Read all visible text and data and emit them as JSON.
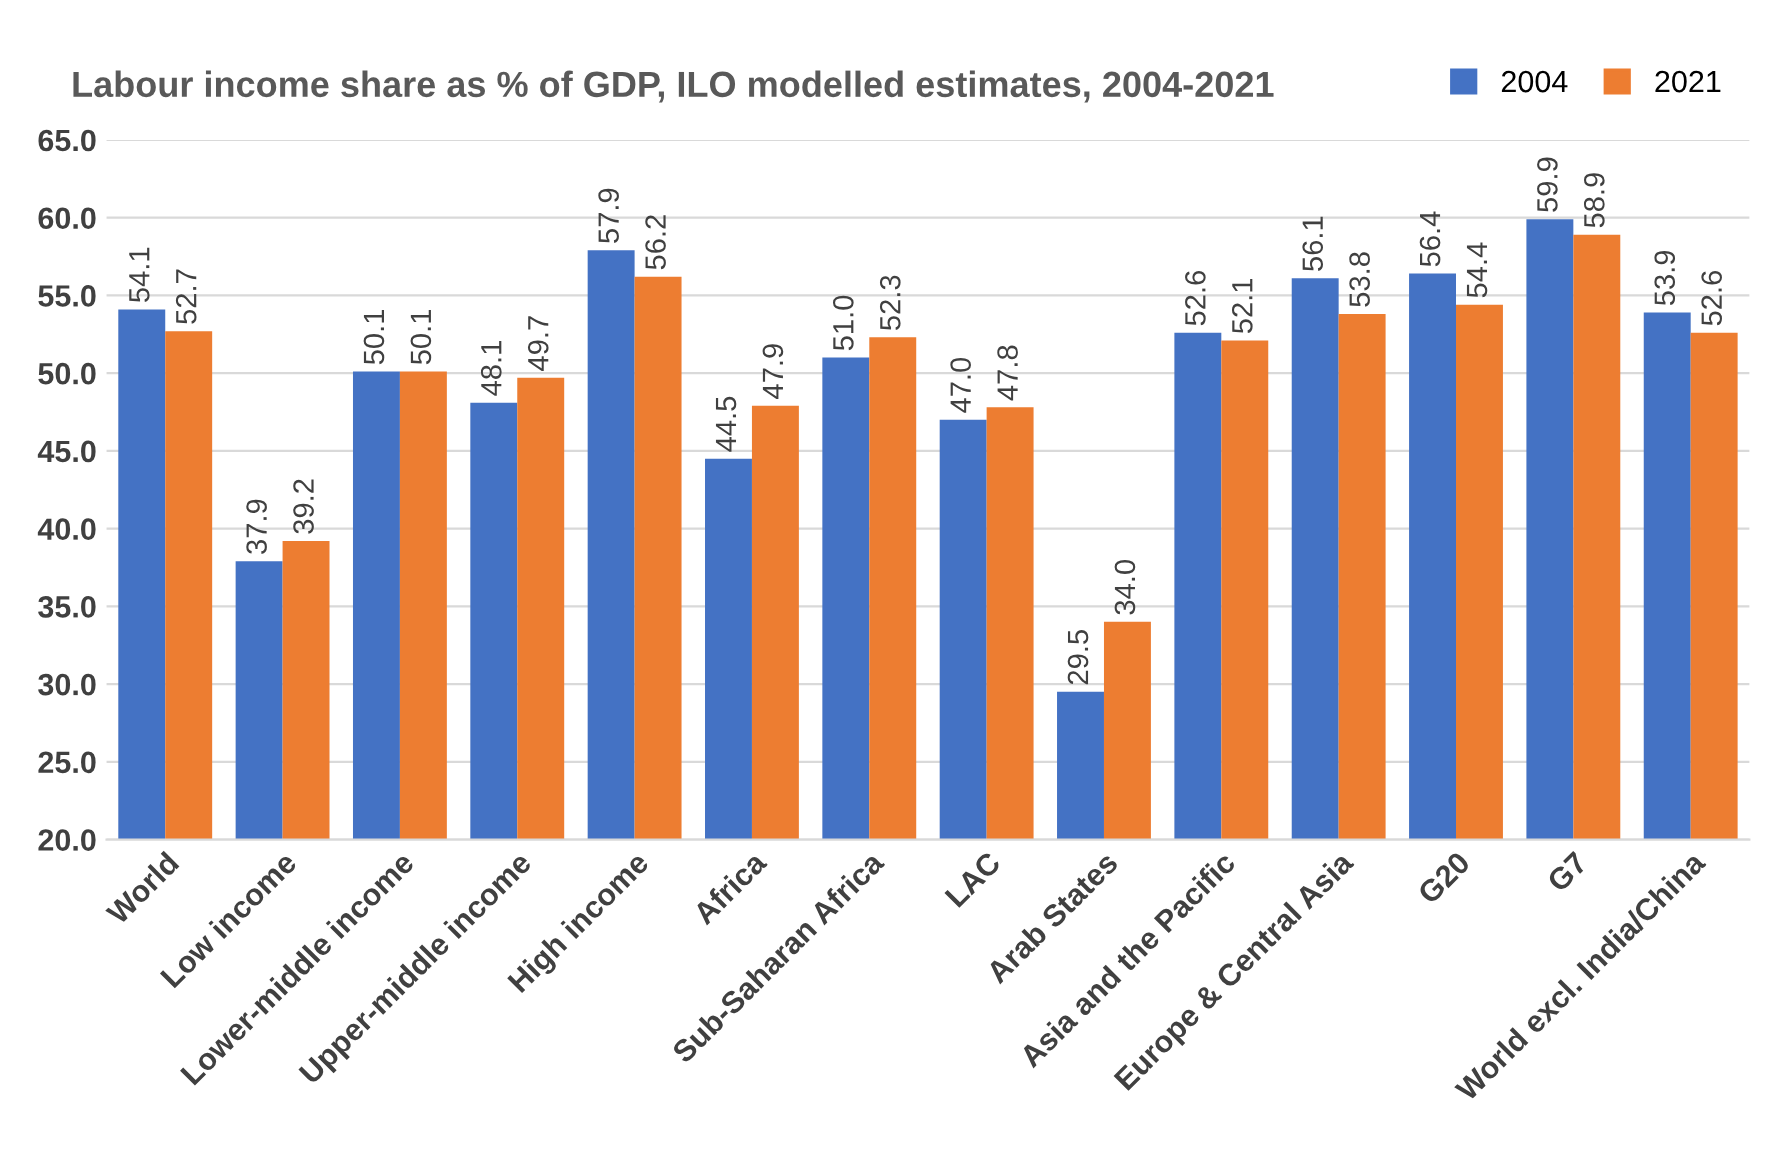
{
  "chart_data": {
    "type": "bar",
    "title": "Labour income share as % of GDP, ILO modelled estimates, 2004-2021",
    "categories": [
      "World",
      "Low income",
      "Lower-middle income",
      "Upper-middle income",
      "High income",
      "Africa",
      "Sub-Saharan Africa",
      "LAC",
      "Arab States",
      "Asia and the Pacific",
      "Europe & Central Asia",
      "G20",
      "G7",
      "World excl. India/China"
    ],
    "series": [
      {
        "name": "2004",
        "color": "#4472c4",
        "values": [
          54.1,
          37.9,
          50.1,
          48.1,
          57.9,
          44.5,
          51.0,
          47.0,
          29.5,
          52.6,
          56.1,
          56.4,
          59.9,
          53.9
        ],
        "value_labels": [
          "54.1",
          "37.9",
          "50.1",
          "48.1",
          "57.9",
          "44.5",
          "51.0",
          "47.0",
          "29.5",
          "52.6",
          "56.1",
          "56.4",
          "59.9",
          "53.9"
        ]
      },
      {
        "name": "2021",
        "color": "#ed7d31",
        "values": [
          52.7,
          39.2,
          50.1,
          49.7,
          56.2,
          47.9,
          52.3,
          47.8,
          34.0,
          52.1,
          53.8,
          54.4,
          58.9,
          52.6
        ],
        "value_labels": [
          "52.7",
          "39.2",
          "50.1",
          "49.7",
          "56.2",
          "47.9",
          "52.3",
          "47.8",
          "34.0",
          "52.1",
          "53.8",
          "54.4",
          "58.9",
          "52.6"
        ]
      }
    ],
    "ylim": [
      20,
      65
    ],
    "yticks": [
      {
        "value": 20,
        "label": "20.0"
      },
      {
        "value": 25,
        "label": "25.0"
      },
      {
        "value": 30,
        "label": "30.0"
      },
      {
        "value": 35,
        "label": "35.0"
      },
      {
        "value": 40,
        "label": "40.0"
      },
      {
        "value": 45,
        "label": "45.0"
      },
      {
        "value": 50,
        "label": "50.0"
      },
      {
        "value": 55,
        "label": "55.0"
      },
      {
        "value": 60,
        "label": "60.0"
      },
      {
        "value": 65,
        "label": "65.0"
      }
    ],
    "grid": "y",
    "legend": "top right"
  }
}
